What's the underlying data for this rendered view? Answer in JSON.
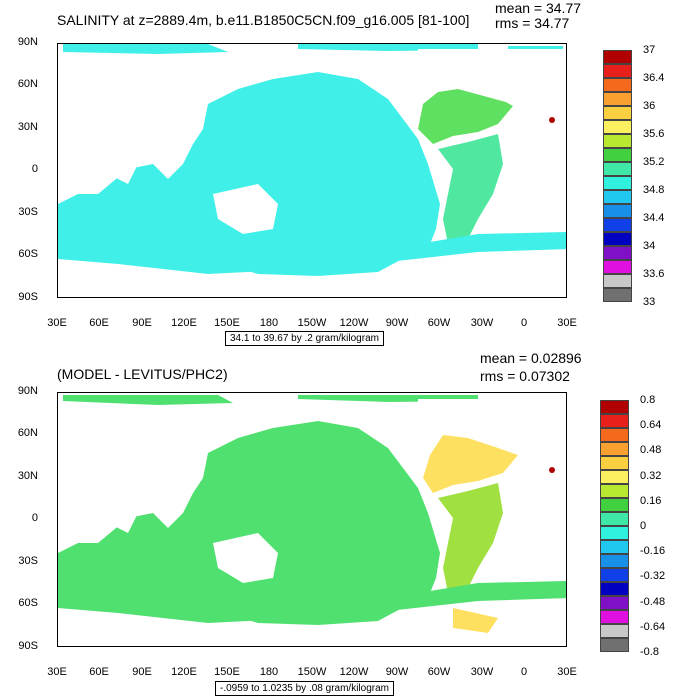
{
  "panels": [
    {
      "title": "SALINITY at z=2889.4m, b.e11.B1850C5CN.f09_g16.005 [81-100]",
      "mean": "mean = 34.77",
      "rms": "rms = 34.77",
      "info": "34.1 to 39.67 by .2 gram/kilogram",
      "colorbar_labels": [
        "37",
        "36.4",
        "36",
        "35.6",
        "35.2",
        "34.8",
        "34.4",
        "34",
        "33.6",
        "33"
      ],
      "colorbar_colors": [
        "#b00000",
        "#e8201c",
        "#f46a1c",
        "#f8a030",
        "#fad040",
        "#fdf060",
        "#b8e830",
        "#40d040",
        "#40e8a8",
        "#30f0e0",
        "#20c8f0",
        "#1890e8",
        "#1040e8",
        "#0000c0",
        "#8010c8",
        "#e010e0",
        "#c8c8c8",
        "#707070"
      ],
      "ocean_fill": "#40f0e8",
      "atlantic_fill": "#60e060",
      "atlantic_south_fill": "#50e8a0"
    },
    {
      "title": "(MODEL - LEVITUS/PHC2)",
      "mean": "mean = 0.02896",
      "rms": "rms = 0.07302",
      "info": "-.0959 to 1.0235 by .08 gram/kilogram",
      "colorbar_labels": [
        "0.8",
        "0.64",
        "0.48",
        "0.32",
        "0.16",
        "0",
        "-0.16",
        "-0.32",
        "-0.48",
        "-0.64",
        "-0.8"
      ],
      "colorbar_colors": [
        "#b00000",
        "#e8201c",
        "#f46a1c",
        "#f8a030",
        "#fad040",
        "#fdf060",
        "#b8e830",
        "#40d040",
        "#40e8a8",
        "#30f0e0",
        "#20c8f0",
        "#1890e8",
        "#1040e8",
        "#0000c0",
        "#8010c8",
        "#e010e0",
        "#c8c8c8",
        "#707070"
      ],
      "ocean_fill": "#50e070",
      "atlantic_fill": "#fde060",
      "atlantic_south_fill": "#a0e040"
    }
  ],
  "lat_labels": [
    "90N",
    "60N",
    "30N",
    "0",
    "30S",
    "60S",
    "90S"
  ],
  "lon_labels": [
    "30E",
    "60E",
    "90E",
    "120E",
    "150E",
    "180",
    "150W",
    "120W",
    "90W",
    "60W",
    "30W",
    "0",
    "30E"
  ]
}
